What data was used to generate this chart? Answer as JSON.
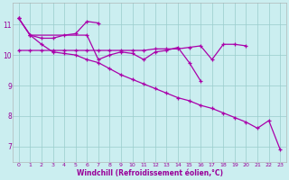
{
  "bg_color": "#cbeef0",
  "line_color": "#aa00aa",
  "grid_color": "#99cccc",
  "xlabel": "Windchill (Refroidissement éolien,°C)",
  "xlabel_color": "#990099",
  "ylim": [
    6.5,
    11.7
  ],
  "xlim": [
    -0.5,
    23.5
  ],
  "yticks": [
    7,
    8,
    9,
    10,
    11
  ],
  "xticks": [
    0,
    1,
    2,
    3,
    4,
    5,
    6,
    7,
    8,
    9,
    10,
    11,
    12,
    13,
    14,
    15,
    16,
    17,
    18,
    19,
    20,
    21,
    22,
    23
  ],
  "series_upper": [
    11.2,
    10.65,
    10.55,
    10.55,
    10.65,
    10.7,
    11.1,
    11.05,
    null,
    null,
    null,
    null,
    null,
    null,
    null,
    null,
    null,
    null,
    null,
    null,
    null,
    null,
    null,
    null
  ],
  "series_mid_flat": [
    10.15,
    10.15,
    10.15,
    10.15,
    10.15,
    10.15,
    10.15,
    10.15,
    10.15,
    10.15,
    10.15,
    10.15,
    10.2,
    10.2,
    10.2,
    10.25,
    10.3,
    9.85,
    10.35,
    10.35,
    10.3,
    null,
    null,
    null
  ],
  "series_wiggly": [
    11.2,
    10.65,
    null,
    null,
    null,
    null,
    10.65,
    9.85,
    10.0,
    10.1,
    10.05,
    9.85,
    10.1,
    10.15,
    10.25,
    9.75,
    9.15,
    null,
    null,
    null,
    null,
    null,
    null,
    null
  ],
  "series_descent": [
    11.2,
    10.65,
    10.35,
    10.1,
    10.05,
    10.0,
    9.85,
    9.75,
    9.55,
    9.35,
    9.2,
    9.05,
    8.9,
    8.75,
    8.6,
    8.5,
    8.35,
    8.25,
    8.1,
    7.95,
    7.8,
    7.6,
    7.85,
    6.9
  ]
}
